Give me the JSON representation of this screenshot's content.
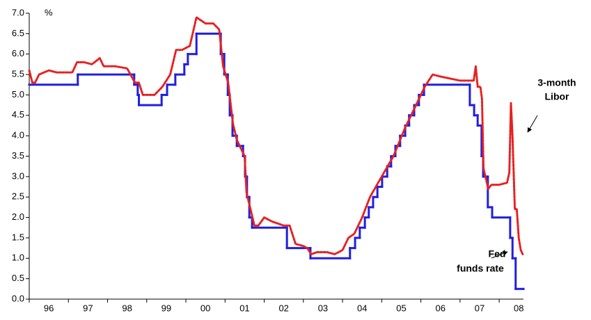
{
  "chart_data": {
    "type": "line",
    "y_label": "%",
    "annotations": [
      {
        "lines": [
          "3-month",
          "Libor"
        ]
      },
      {
        "lines": [
          "Fed",
          "funds rate"
        ]
      }
    ],
    "xlim": [
      1996,
      2008.62
    ],
    "xticks": [
      {
        "value": 1996,
        "label": "96"
      },
      {
        "value": 1997,
        "label": "97"
      },
      {
        "value": 1998,
        "label": "98"
      },
      {
        "value": 1999,
        "label": "99"
      },
      {
        "value": 2000,
        "label": "00"
      },
      {
        "value": 2001,
        "label": "01"
      },
      {
        "value": 2002,
        "label": "02"
      },
      {
        "value": 2003,
        "label": "03"
      },
      {
        "value": 2004,
        "label": "04"
      },
      {
        "value": 2005,
        "label": "05"
      },
      {
        "value": 2006,
        "label": "06"
      },
      {
        "value": 2007,
        "label": "07"
      },
      {
        "value": 2008,
        "label": "08"
      }
    ],
    "ylim": [
      0,
      7
    ],
    "yticks": [
      {
        "value": 0,
        "label": "0.0"
      },
      0.5,
      {
        "value": 1,
        "label": "1.0"
      },
      1.5,
      {
        "value": 2,
        "label": "2.0"
      },
      2.5,
      {
        "value": 3,
        "label": "3.0"
      },
      3.5,
      {
        "value": 4,
        "label": "4.0"
      },
      4.5,
      {
        "value": 5,
        "label": "5.0"
      },
      5.5,
      {
        "value": 6,
        "label": "6.0"
      },
      6.5,
      {
        "value": 7,
        "label": "7.0"
      }
    ],
    "grid": false,
    "series": [
      {
        "color": "#1f1fe0",
        "step": true,
        "dash": false,
        "x": [
          1996.0,
          1997.24,
          1998.68,
          1998.77,
          1998.8,
          1999.38,
          1999.52,
          1999.73,
          1999.96,
          2000.05,
          2000.27,
          2000.89,
          2000.98,
          2001.07,
          2001.12,
          2001.19,
          2001.3,
          2001.46,
          2001.51,
          2001.56,
          2001.62,
          2001.69,
          2002.58,
          2003.18,
          2004.19,
          2004.32,
          2004.44,
          2004.57,
          2004.67,
          2004.78,
          2004.89,
          2005.01,
          2005.14,
          2005.24,
          2005.35,
          2005.47,
          2005.6,
          2005.7,
          2005.83,
          2005.95,
          2006.08,
          2007.25,
          2007.36,
          2007.45,
          2007.55,
          2007.59,
          2007.71,
          2007.82,
          2008.28,
          2008.34,
          2008.42,
          2008.62
        ],
        "values": [
          5.25,
          5.5,
          5.25,
          5.0,
          4.75,
          5.0,
          5.25,
          5.5,
          5.75,
          6.0,
          6.5,
          6.0,
          5.5,
          5.0,
          4.5,
          4.0,
          3.75,
          3.5,
          3.0,
          2.5,
          2.0,
          1.75,
          1.25,
          1.0,
          1.25,
          1.5,
          1.75,
          2.0,
          2.25,
          2.5,
          2.75,
          3.0,
          3.25,
          3.5,
          3.75,
          4.0,
          4.25,
          4.5,
          4.75,
          5.0,
          5.25,
          4.75,
          4.5,
          4.25,
          3.5,
          3.0,
          2.25,
          2.0,
          1.5,
          1.0,
          0.25,
          0.25
        ]
      },
      {
        "color": "#e82020",
        "step": false,
        "dash": true,
        "x": [
          1996.0,
          1996.08,
          1996.15,
          1996.25,
          1996.5,
          1996.7,
          1997.0,
          1997.1,
          1997.22,
          1997.4,
          1997.6,
          1997.8,
          1997.9,
          1998.2,
          1998.5,
          1998.7,
          1998.8,
          1998.9,
          1999.2,
          1999.4,
          1999.6,
          1999.75,
          1999.9,
          2000.1,
          2000.27,
          2000.5,
          2000.7,
          2000.85,
          2000.95,
          2001.08,
          2001.2,
          2001.3,
          2001.4,
          2001.5,
          2001.55,
          2001.65,
          2001.75,
          2001.85,
          2002.0,
          2002.2,
          2002.5,
          2002.65,
          2002.8,
          2003.0,
          2003.1,
          2003.2,
          2003.35,
          2003.6,
          2003.8,
          2004.0,
          2004.15,
          2004.3,
          2004.5,
          2004.7,
          2005.0,
          2005.3,
          2005.6,
          2005.9,
          2006.1,
          2006.3,
          2006.5,
          2007.0,
          2007.35,
          2007.4,
          2007.45,
          2007.52,
          2007.56,
          2007.6,
          2007.65,
          2007.72,
          2007.8,
          2008.0,
          2008.2,
          2008.26,
          2008.3,
          2008.34,
          2008.4,
          2008.45,
          2008.5,
          2008.55,
          2008.6
        ],
        "values": [
          5.6,
          5.3,
          5.3,
          5.5,
          5.6,
          5.55,
          5.55,
          5.55,
          5.8,
          5.8,
          5.75,
          5.9,
          5.7,
          5.7,
          5.65,
          5.3,
          5.3,
          5.0,
          5.0,
          5.2,
          5.5,
          6.1,
          6.1,
          6.2,
          6.9,
          6.75,
          6.75,
          6.6,
          5.7,
          5.3,
          4.3,
          3.9,
          3.7,
          3.5,
          2.6,
          2.2,
          1.8,
          1.8,
          2.0,
          1.9,
          1.8,
          1.8,
          1.35,
          1.3,
          1.25,
          1.1,
          1.15,
          1.15,
          1.1,
          1.2,
          1.5,
          1.6,
          2.0,
          2.5,
          3.0,
          3.5,
          4.2,
          4.8,
          5.2,
          5.5,
          5.45,
          5.35,
          5.35,
          5.7,
          5.2,
          5.2,
          4.9,
          3.2,
          3.0,
          2.7,
          2.8,
          2.8,
          2.85,
          3.1,
          4.8,
          4.0,
          2.2,
          2.2,
          1.5,
          1.2,
          1.1
        ]
      }
    ]
  }
}
